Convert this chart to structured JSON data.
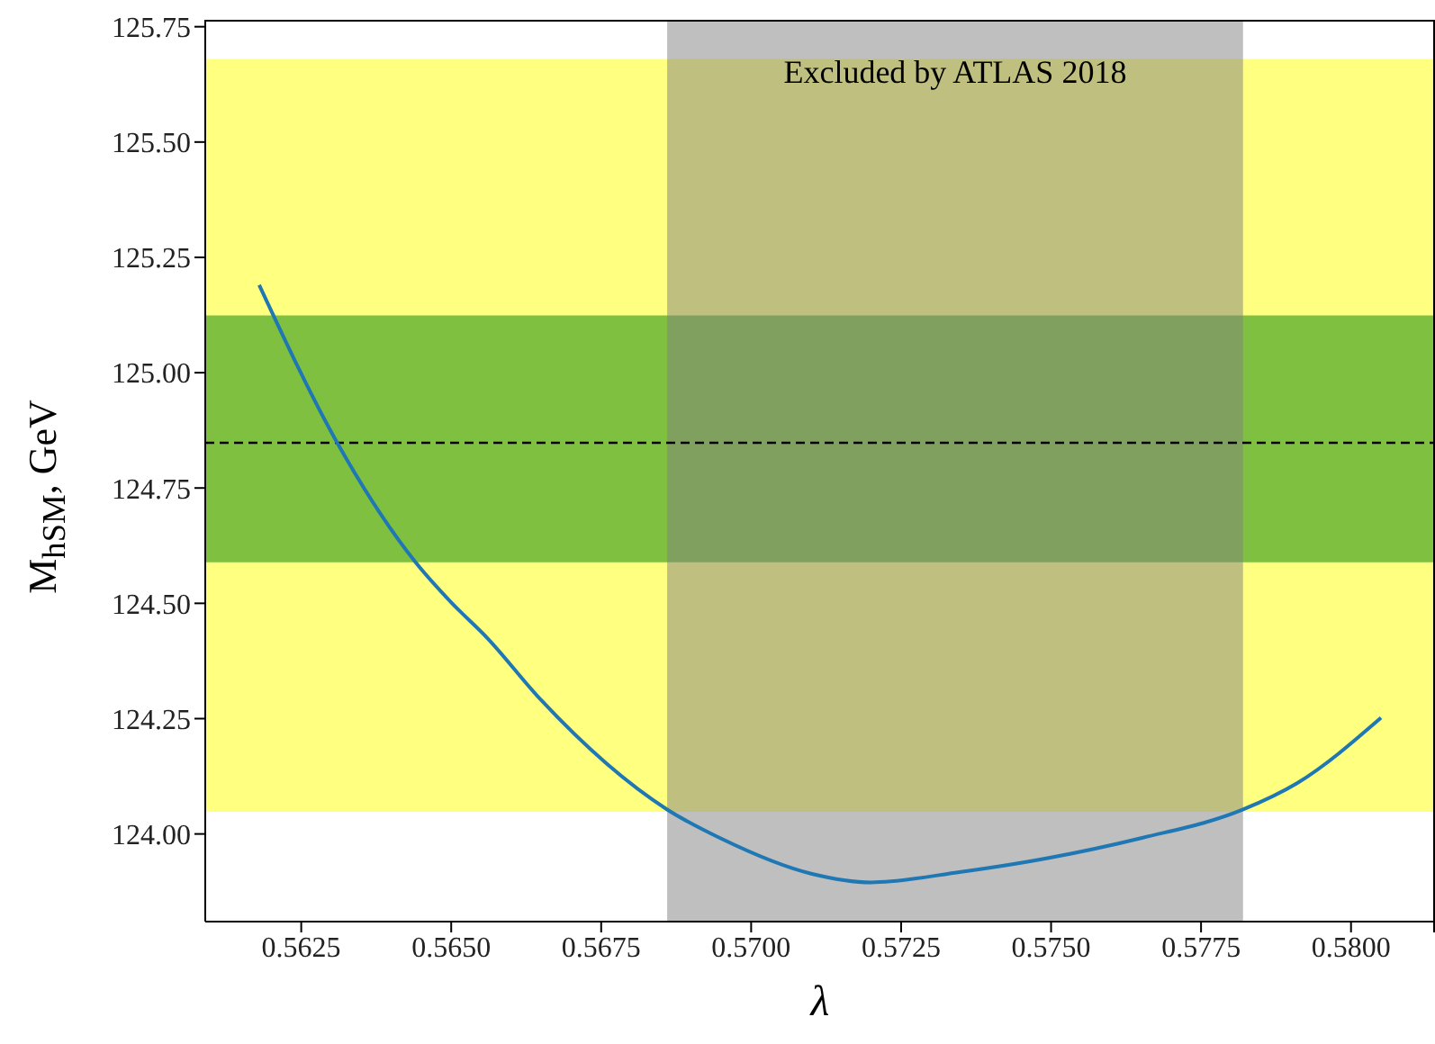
{
  "chart_data": {
    "type": "line",
    "xlabel": "λ",
    "ylabel": "M$_{hSM}$, GeV",
    "xlim": [
      0.5609,
      0.5814
    ],
    "ylim": [
      123.81,
      125.765
    ],
    "xticks": [
      0.5625,
      {
        "value": 0.565,
        "label": "0.5650"
      },
      0.5675,
      {
        "value": 0.57,
        "label": "0.5700"
      },
      0.5725,
      {
        "value": 0.575,
        "label": "0.5750"
      },
      0.5775,
      {
        "value": 0.58,
        "label": "0.5800"
      }
    ],
    "yticks": [
      {
        "value": 124,
        "label": "124.00"
      },
      124.25,
      {
        "value": 124.5,
        "label": "124.50"
      },
      124.75,
      {
        "value": 125,
        "label": "125.00"
      },
      125.25,
      {
        "value": 125.5,
        "label": "125.50"
      },
      125.75
    ],
    "series": [
      {
        "color": "#1f77b4",
        "x": [
          0.5618,
          0.5631,
          0.5644,
          0.565,
          0.5656,
          0.5665,
          0.5686,
          0.5695,
          0.571,
          0.572,
          0.5735,
          0.575,
          0.5765,
          0.5782,
          0.5791,
          0.5805
        ],
        "values": [
          125.19,
          124.848,
          124.59,
          124.502,
          124.425,
          124.29,
          124.053,
          123.99,
          123.914,
          123.895,
          123.918,
          123.949,
          123.991,
          124.053,
          124.11,
          124.252
        ]
      }
    ],
    "bands": [
      {
        "axis": "y",
        "from": 124.048,
        "to": 125.68,
        "color": "#ffff80"
      },
      {
        "axis": "y",
        "from": 124.589,
        "to": 125.124,
        "color": "#80c040"
      },
      {
        "axis": "x",
        "from": 0.5686,
        "to": 0.5782,
        "color": "#808080",
        "label": "Excluded by ATLAS 2018"
      }
    ],
    "ref_lines": [
      {
        "axis": "y",
        "value": 124.848,
        "color": "#000000",
        "line_style": "dashed"
      }
    ],
    "marker": "none",
    "line_style": "solid"
  }
}
